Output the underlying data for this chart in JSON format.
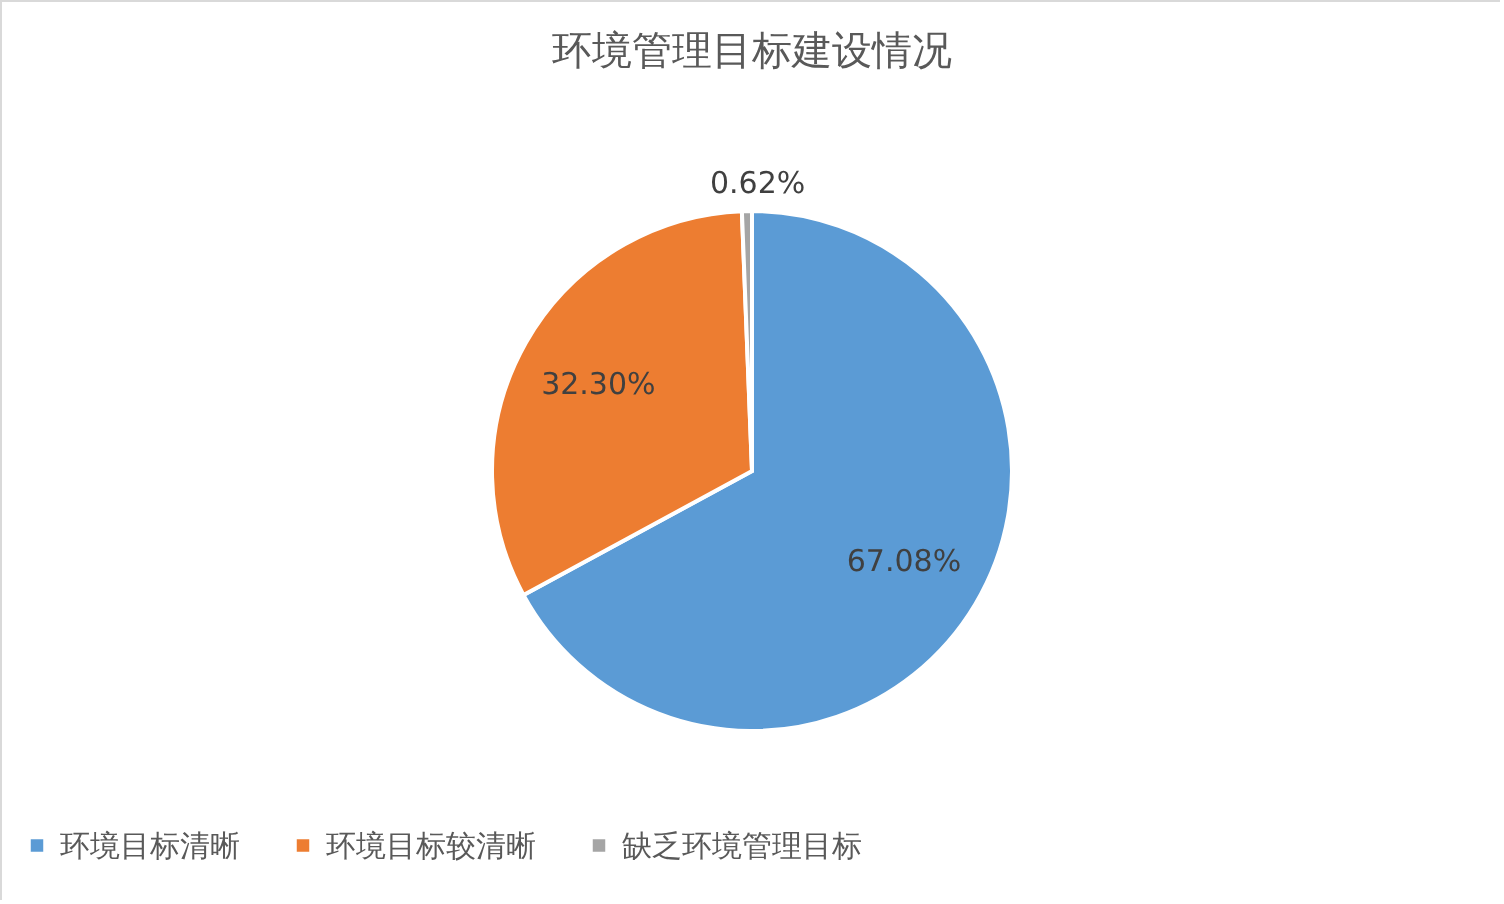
{
  "chart_data": {
    "type": "pie",
    "title": "环境管理目标建设情况",
    "categories": [
      "环境目标清晰",
      "环境目标较清晰",
      "缺乏环境管理目标"
    ],
    "values": [
      67.08,
      32.3,
      0.62
    ],
    "colors": [
      "#5b9bd5",
      "#ed7d31",
      "#a5a5a5"
    ],
    "value_labels": [
      "67.08%",
      "32.30%",
      "0.62%"
    ],
    "legend": "bottom"
  }
}
